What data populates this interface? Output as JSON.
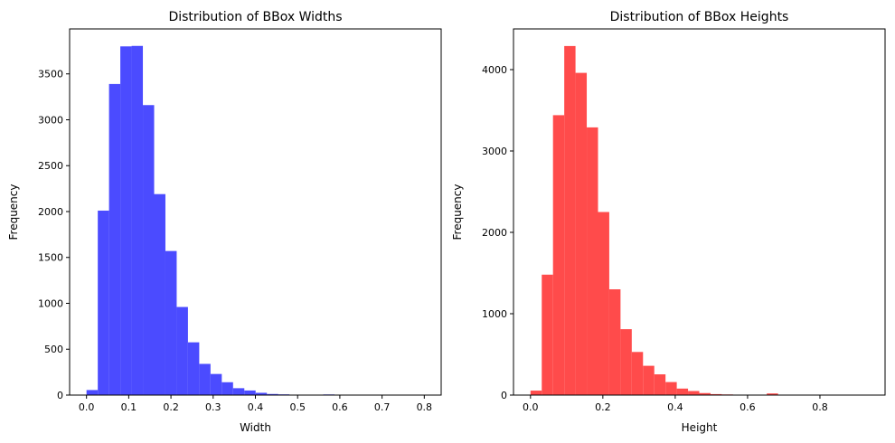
{
  "chart_data": [
    {
      "type": "bar",
      "title": "Distribution of BBox Widths",
      "xlabel": "Width",
      "ylabel": "Frequency",
      "color": "#4b4bff",
      "xlim": [
        -0.04,
        0.84
      ],
      "ylim": [
        0,
        3990
      ],
      "xticks": [
        0.0,
        0.1,
        0.2,
        0.3,
        0.4,
        0.5,
        0.6,
        0.7,
        0.8
      ],
      "xtick_labels": [
        "0.0",
        "0.1",
        "0.2",
        "0.3",
        "0.4",
        "0.5",
        "0.6",
        "0.7",
        "0.8"
      ],
      "yticks": [
        0,
        500,
        1000,
        1500,
        2000,
        2500,
        3000,
        3500
      ],
      "ytick_labels": [
        "0",
        "500",
        "1000",
        "1500",
        "2000",
        "2500",
        "3000",
        "3500"
      ],
      "bin_start": 0.0,
      "bin_width": 0.0267,
      "values": [
        55,
        2010,
        3390,
        3800,
        3805,
        3160,
        2190,
        1570,
        960,
        575,
        340,
        230,
        140,
        75,
        50,
        25,
        12,
        8,
        5,
        4,
        2,
        7,
        3,
        2,
        1,
        1,
        1,
        1,
        1,
        1
      ],
      "grid": false,
      "legend": "none"
    },
    {
      "type": "bar",
      "title": "Distribution of BBox Heights",
      "xlabel": "Height",
      "ylabel": "Frequency",
      "color": "#ff4b4b",
      "xlim": [
        -0.047,
        0.98
      ],
      "ylim": [
        0,
        4500
      ],
      "xticks": [
        0.0,
        0.2,
        0.4,
        0.6,
        0.8
      ],
      "xtick_labels": [
        "0.0",
        "0.2",
        "0.4",
        "0.6",
        "0.8"
      ],
      "yticks": [
        0,
        1000,
        2000,
        3000,
        4000
      ],
      "ytick_labels": [
        "0",
        "1000",
        "2000",
        "3000",
        "4000"
      ],
      "bin_start": 0.0,
      "bin_width": 0.0311,
      "values": [
        55,
        1480,
        3440,
        4290,
        3960,
        3290,
        2250,
        1300,
        810,
        530,
        360,
        255,
        160,
        80,
        50,
        25,
        12,
        8,
        5,
        3,
        2,
        20,
        4,
        2,
        1,
        1,
        1,
        1,
        1,
        1
      ],
      "grid": false,
      "legend": "none"
    }
  ]
}
